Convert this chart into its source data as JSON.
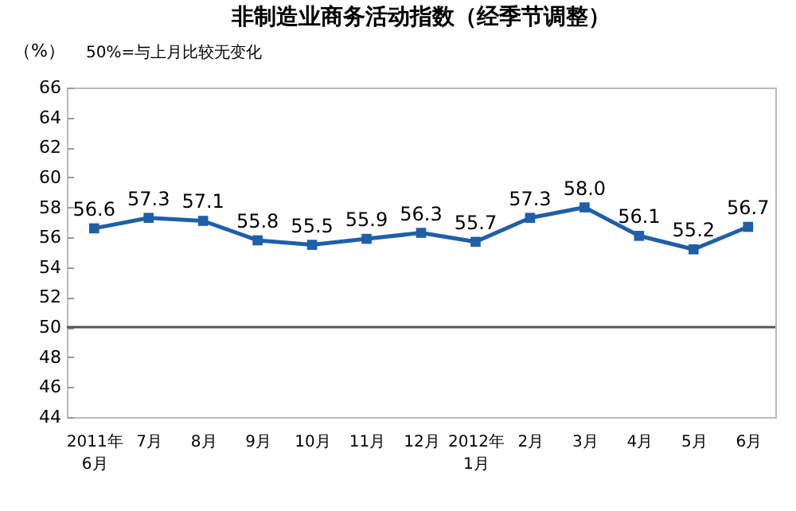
{
  "chart_data": {
    "type": "line",
    "title": "非制造业商务活动指数（经季节调整）",
    "subtitle": "50%=与上月比较无变化",
    "ylabel": "（%）",
    "categories": [
      "2011年\n6月",
      "7月",
      "8月",
      "9月",
      "10月",
      "11月",
      "12月",
      "2012年\n1月",
      "2月",
      "3月",
      "4月",
      "5月",
      "6月"
    ],
    "series": [
      {
        "color": "#1f5fa8",
        "values": [
          56.6,
          57.3,
          57.1,
          55.8,
          55.5,
          55.9,
          56.3,
          55.7,
          57.3,
          58.0,
          56.1,
          55.2,
          56.7
        ]
      }
    ],
    "ylim": [
      44,
      66
    ],
    "yticks": [
      44,
      46,
      48,
      50,
      52,
      54,
      56,
      58,
      60,
      62,
      64,
      66
    ],
    "ref_lines": [
      {
        "axis": "y",
        "value": 50,
        "color": "#555555"
      }
    ],
    "value_labels": [
      "56.6",
      "57.3",
      "57.1",
      "55.8",
      "55.5",
      "55.9",
      "56.3",
      "55.7",
      "57.3",
      "58.0",
      "56.1",
      "55.2",
      "56.7"
    ],
    "marker": "square",
    "line_style": "solid"
  }
}
